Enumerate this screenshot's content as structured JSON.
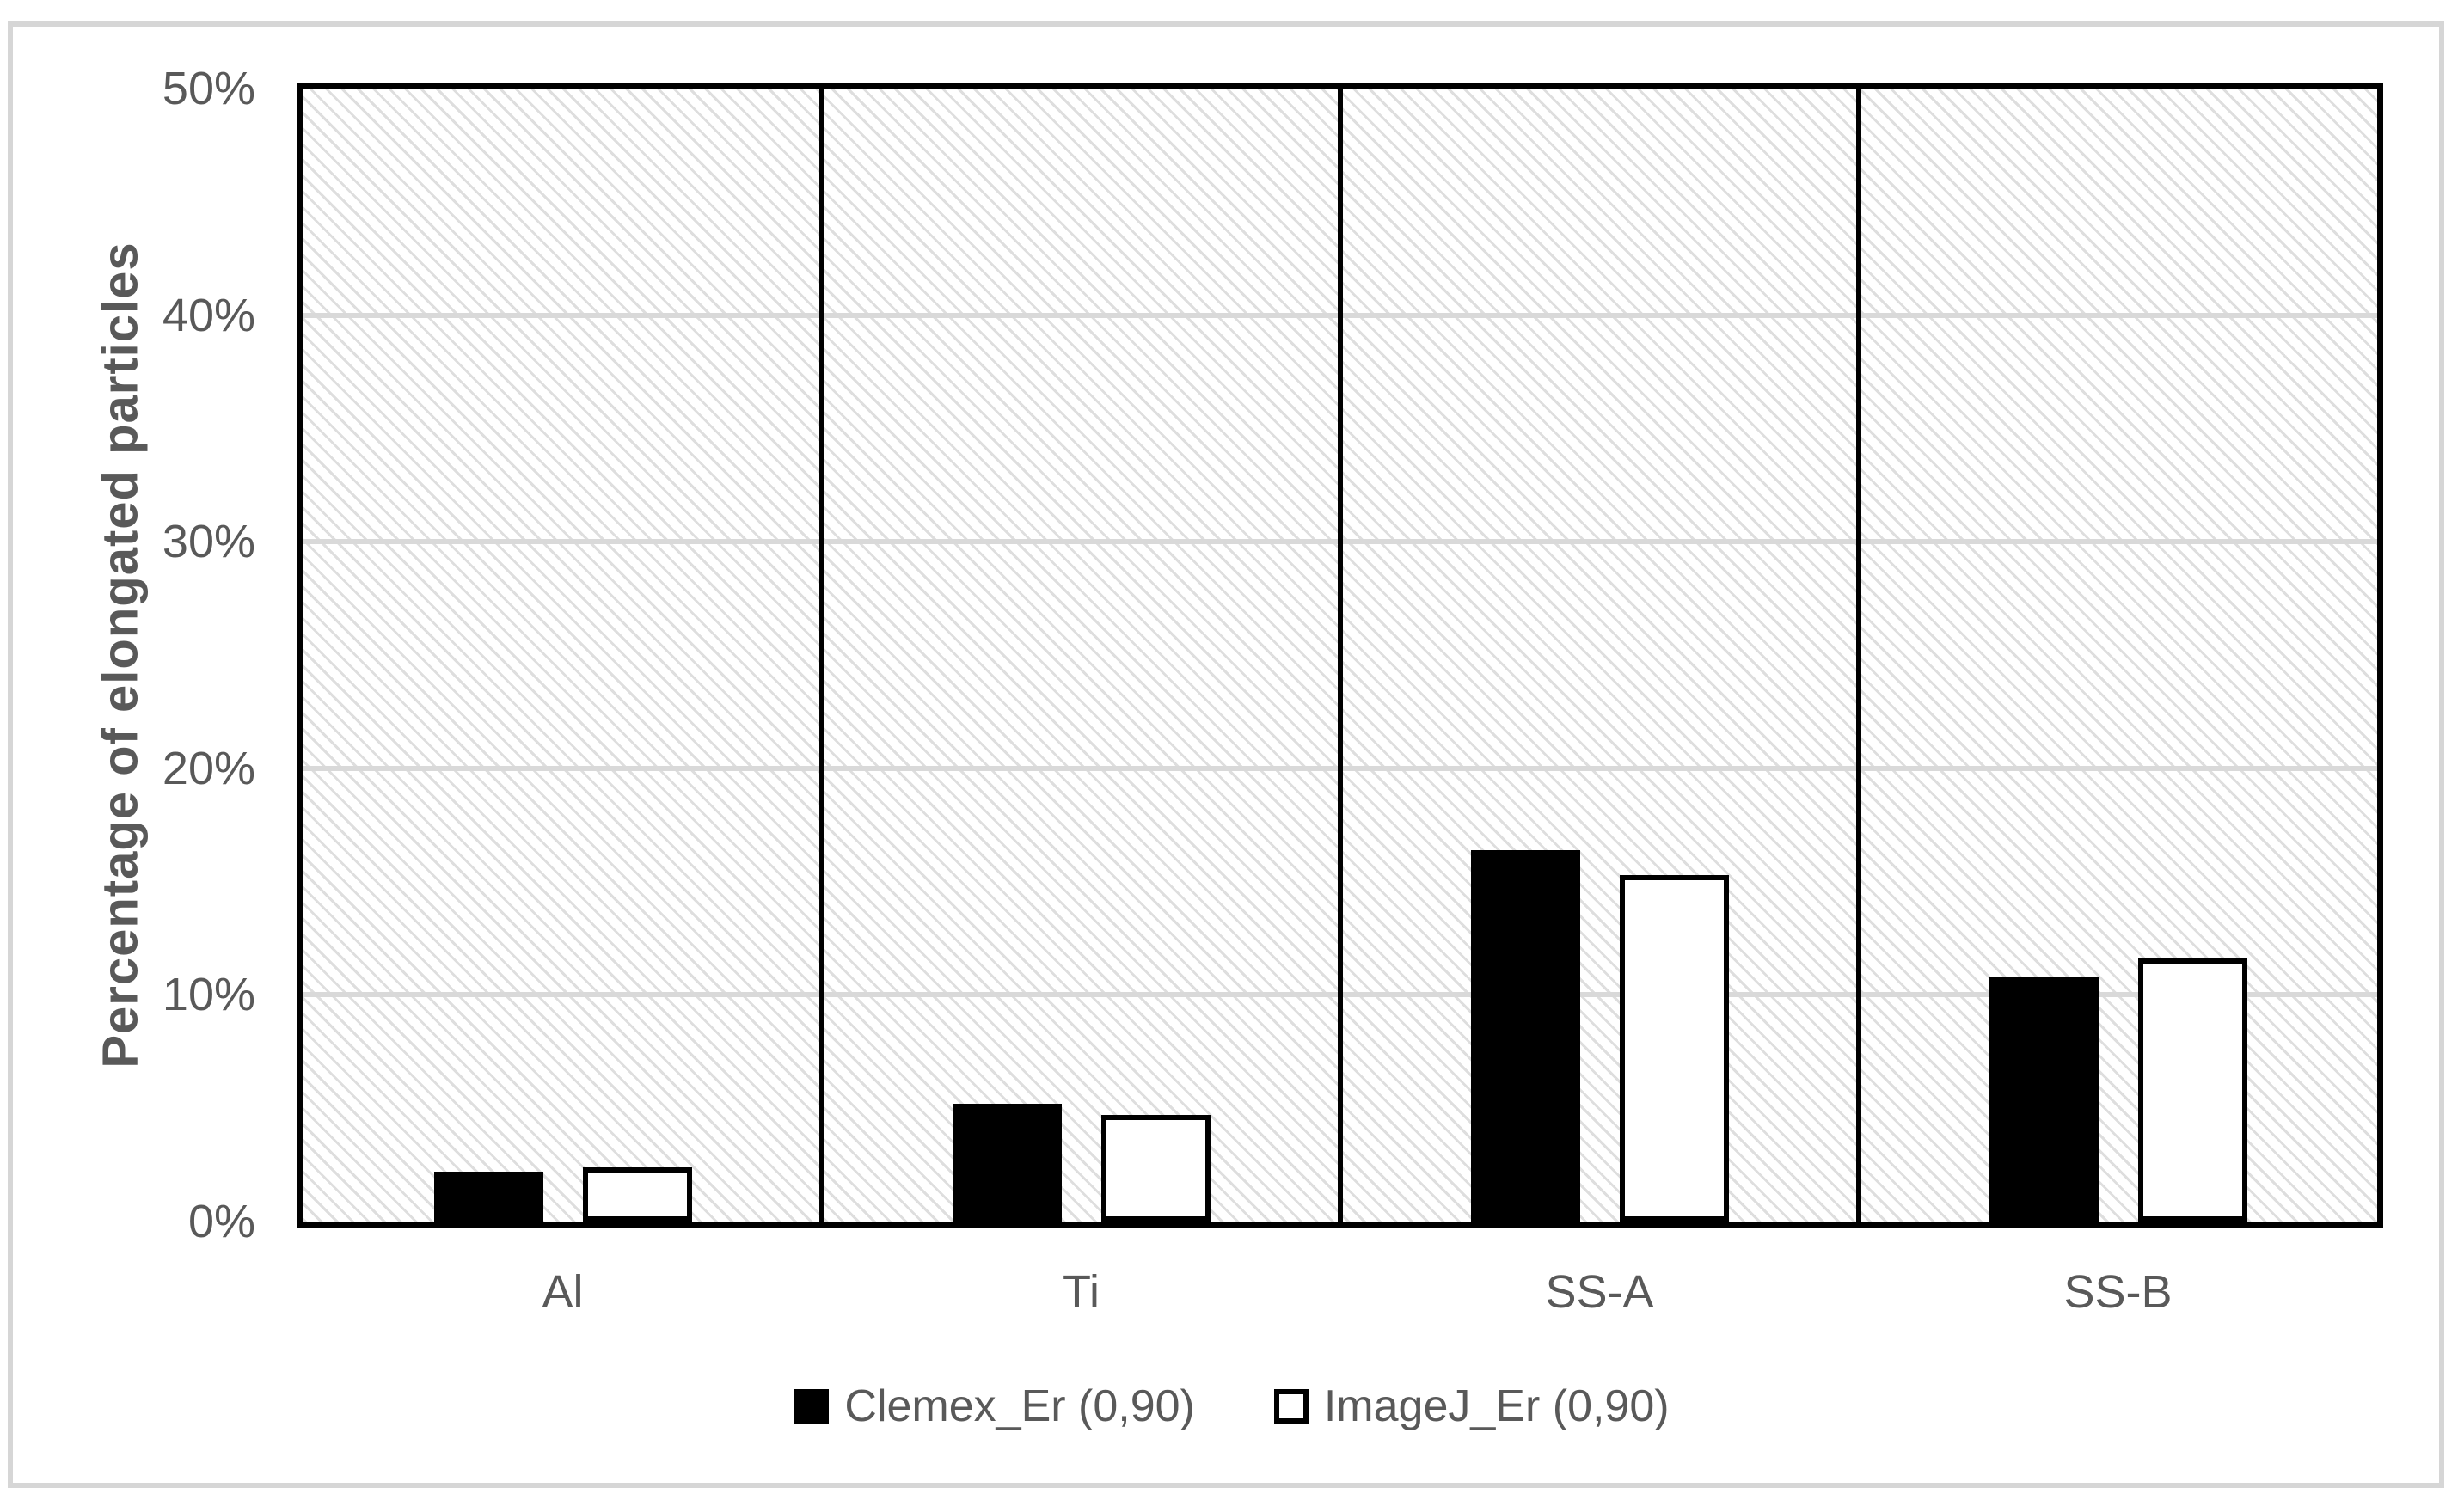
{
  "chart_data": {
    "type": "bar",
    "categories": [
      "Al",
      "Ti",
      "SS-A",
      "SS-B"
    ],
    "series": [
      {
        "name": "Clemex_Er (0,90)",
        "fill": "black",
        "values": [
          2.2,
          5.2,
          16.4,
          10.8
        ]
      },
      {
        "name": "ImageJ_Er (0,90)",
        "fill": "white",
        "values": [
          2.4,
          4.7,
          15.3,
          11.6
        ]
      }
    ],
    "title": "",
    "xlabel": "",
    "ylabel": "Percentage of elongated particles",
    "ylim": [
      0,
      50
    ],
    "ytick_step": 10,
    "ytick_labels": [
      "0%",
      "10%",
      "20%",
      "30%",
      "40%",
      "50%"
    ],
    "grid": "horizontal",
    "category_separators": true,
    "plot_background": "light-downward-diagonal-hatch",
    "legend_position": "bottom-center"
  },
  "colors": {
    "bar_fill_black": "#000000",
    "bar_fill_white": "#ffffff",
    "bar_outline": "#000000",
    "gridline": "#d9d9d9",
    "hatch_line": "#dedede",
    "axis_border": "#000000",
    "outer_frame": "#d6d6d6",
    "text": "#595959"
  }
}
